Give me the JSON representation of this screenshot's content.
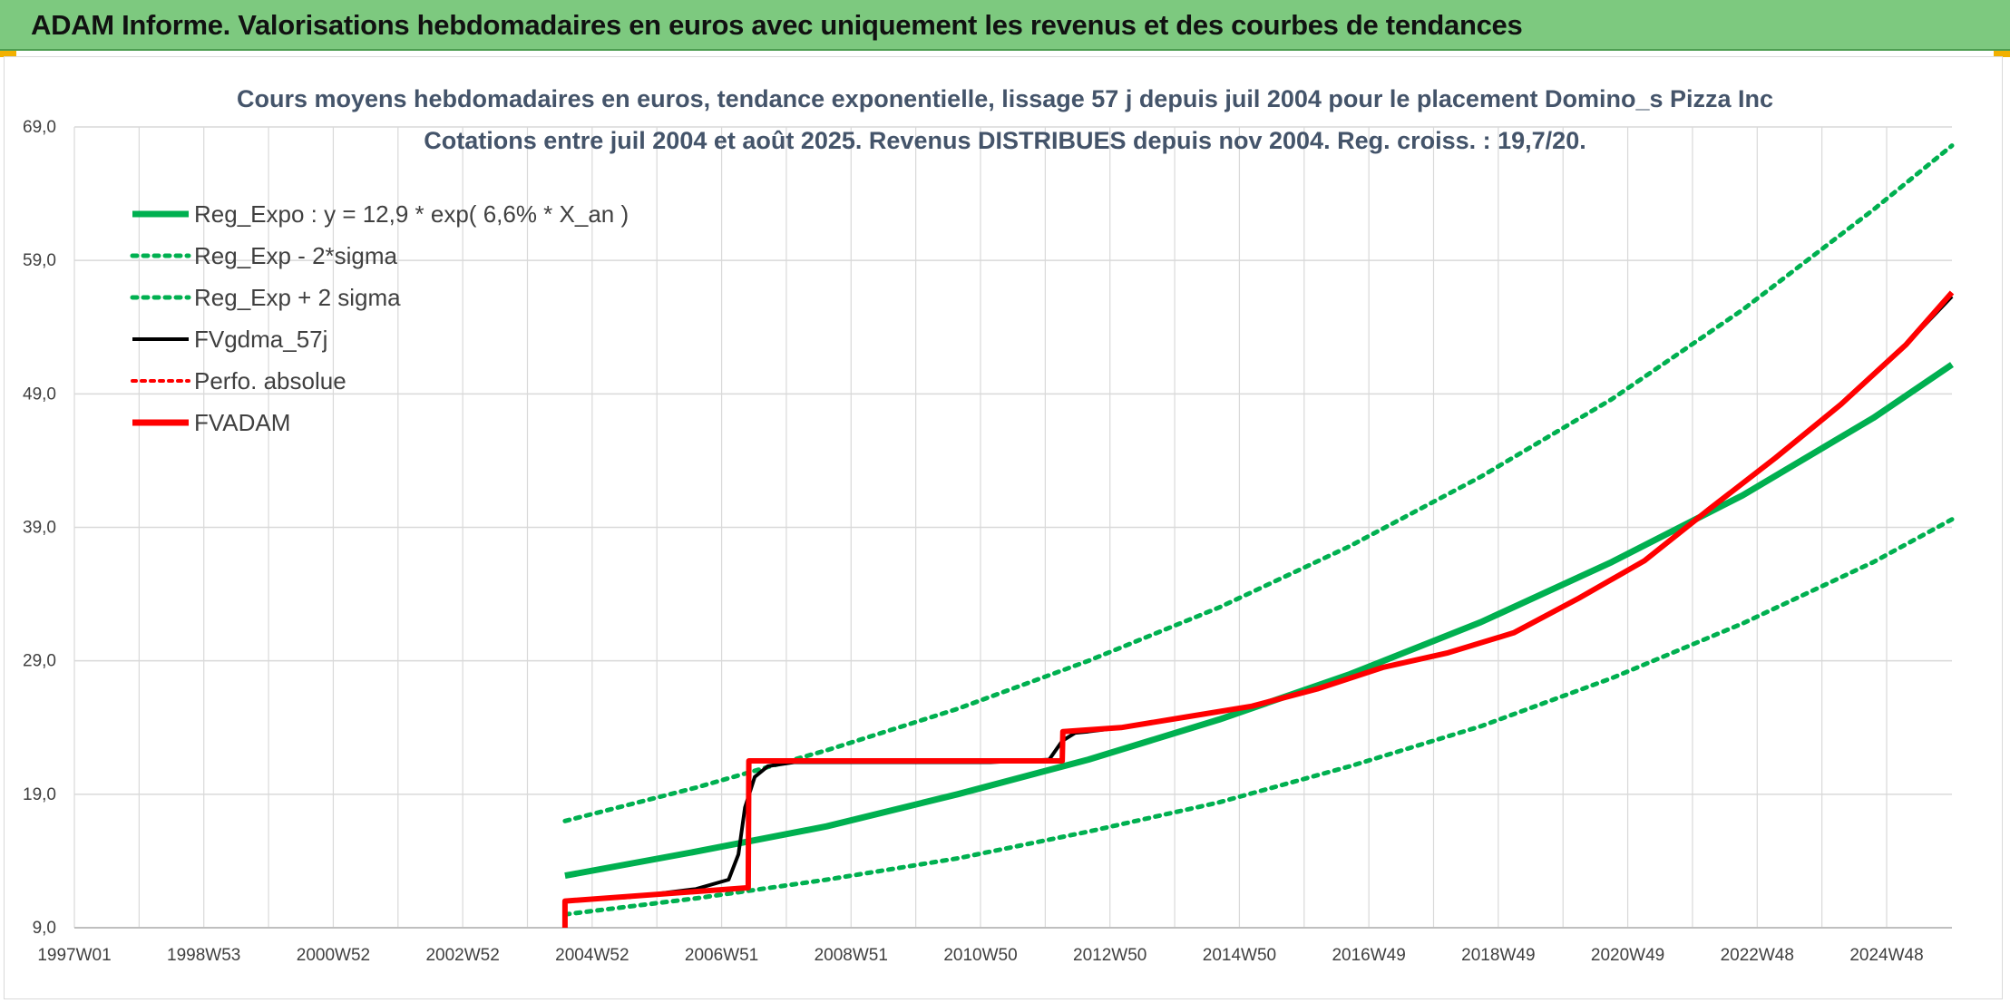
{
  "banner": {
    "title": "ADAM Informe. Valorisations hebdomadaires en euros avec uniquement les revenus et des courbes de tendances"
  },
  "colors": {
    "banner_bg": "#7dc97f",
    "green": "#00b050",
    "red": "#ff0000",
    "black": "#000000",
    "grid": "#d9d9d9"
  },
  "chart_data": {
    "type": "line",
    "title": "Cours moyens hebdomadaires en euros, tendance exponentielle, lissage 57 j depuis juil 2004 pour le placement Domino_s Pizza Inc",
    "subtitle": "Cotations entre juil 2004 et août 2025. Revenus DISTRIBUES depuis nov 2004. Reg. croiss. : 19,7/20.",
    "xlabel": "",
    "ylabel": "",
    "x_tick_labels": [
      "1997W01",
      "1998W53",
      "2000W52",
      "2002W52",
      "2004W52",
      "2006W51",
      "2008W51",
      "2010W50",
      "2012W50",
      "2014W50",
      "2016W49",
      "2018W49",
      "2020W49",
      "2022W48",
      "2024W48"
    ],
    "x_range": [
      1997.0,
      2025.7
    ],
    "y_tick_labels": [
      "9,0",
      "19,0",
      "29,0",
      "39,0",
      "49,0",
      "59,0",
      "69,0"
    ],
    "ylim": [
      9,
      69
    ],
    "grid": true,
    "legend_position": "top-left",
    "legend": [
      "Reg_Expo : y = 12,9 * exp( 6,6% *  X_an )",
      "Reg_Exp - 2*sigma",
      "Reg_Exp + 2 sigma",
      "FVgdma_57j",
      "Perfo. absolue",
      "FVADAM"
    ],
    "series": [
      {
        "name": "Reg_Expo : y = 12,9 * exp( 6,6% *  X_an )",
        "style": "solid",
        "color": "#00b050",
        "x": [
          2004.5,
          2006.5,
          2008.5,
          2010.5,
          2012.5,
          2014.5,
          2016.5,
          2018.5,
          2020.5,
          2022.5,
          2024.5,
          2025.7
        ],
        "y": [
          12.9,
          14.7,
          16.6,
          19.0,
          21.6,
          24.6,
          28.0,
          31.9,
          36.4,
          41.4,
          47.2,
          51.2
        ]
      },
      {
        "name": "Reg_Exp - 2*sigma",
        "style": "dotted",
        "color": "#00b050",
        "x": [
          2004.5,
          2006.5,
          2008.5,
          2010.5,
          2012.5,
          2014.5,
          2016.5,
          2018.5,
          2020.5,
          2022.5,
          2024.5,
          2025.7
        ],
        "y": [
          10.0,
          11.2,
          12.6,
          14.2,
          16.2,
          18.4,
          21.1,
          24.1,
          27.7,
          31.8,
          36.4,
          39.6
        ]
      },
      {
        "name": "Reg_Exp + 2 sigma",
        "style": "dotted",
        "color": "#00b050",
        "x": [
          2004.5,
          2006.5,
          2008.5,
          2010.5,
          2012.5,
          2014.5,
          2016.5,
          2018.5,
          2020.5,
          2022.5,
          2024.5,
          2025.7
        ],
        "y": [
          17.0,
          19.5,
          22.3,
          25.4,
          29.0,
          33.0,
          37.6,
          42.8,
          48.6,
          55.3,
          62.8,
          67.6
        ]
      },
      {
        "name": "FVgdma_57j",
        "style": "solid",
        "color": "#000000",
        "x": [
          2004.5,
          2005.5,
          2006.5,
          2007.0,
          2007.15,
          2007.25,
          2007.4,
          2007.6,
          2008.0,
          2011.0,
          2011.9,
          2012.1,
          2012.3,
          2012.5,
          2013.0,
          2014.0,
          2015.0,
          2016.0,
          2017.0,
          2018.0,
          2019.0,
          2020.0,
          2021.0,
          2022.0,
          2023.0,
          2024.0,
          2025.0,
          2025.7
        ],
        "y": [
          11.0,
          11.3,
          11.9,
          12.6,
          14.5,
          18.0,
          20.3,
          21.1,
          21.4,
          21.4,
          21.6,
          23.0,
          23.6,
          23.7,
          24.0,
          24.8,
          25.6,
          26.9,
          28.5,
          29.6,
          31.1,
          33.7,
          36.5,
          40.4,
          44.2,
          48.2,
          52.7,
          56.3
        ]
      },
      {
        "name": "Perfo. absolue",
        "style": "dotted",
        "color": "#ff0000",
        "x": [
          2004.5,
          2007.3,
          2007.31,
          2012.1,
          2012.11,
          2013.0,
          2014.0,
          2015.0,
          2016.0,
          2017.0,
          2018.0,
          2019.0,
          2020.0,
          2021.0,
          2022.0,
          2023.0,
          2024.0,
          2025.0,
          2025.7
        ],
        "y": [
          11.0,
          12.0,
          21.5,
          21.5,
          23.7,
          24.0,
          24.8,
          25.6,
          26.9,
          28.5,
          29.6,
          31.1,
          33.7,
          36.5,
          40.4,
          44.2,
          48.2,
          52.7,
          56.6
        ]
      },
      {
        "name": "FVADAM",
        "style": "solid",
        "color": "#ff0000",
        "x": [
          2004.5,
          2004.5,
          2007.3,
          2007.31,
          2012.1,
          2012.11,
          2013.0,
          2014.0,
          2015.0,
          2016.0,
          2017.0,
          2018.0,
          2019.0,
          2020.0,
          2021.0,
          2022.0,
          2023.0,
          2024.0,
          2025.0,
          2025.7
        ],
        "y": [
          9.0,
          11.0,
          12.0,
          21.5,
          21.5,
          23.7,
          24.0,
          24.8,
          25.6,
          26.9,
          28.5,
          29.6,
          31.1,
          33.7,
          36.5,
          40.4,
          44.2,
          48.2,
          52.7,
          56.6
        ]
      }
    ]
  }
}
